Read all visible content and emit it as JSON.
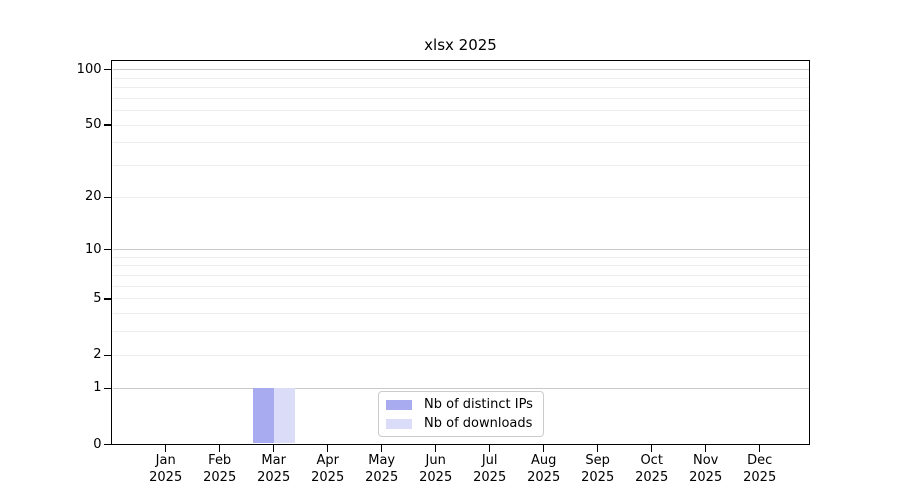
{
  "chart_data": {
    "type": "bar",
    "title": "xlsx 2025",
    "categories": [
      "Jan 2025",
      "Feb 2025",
      "Mar 2025",
      "Apr 2025",
      "May 2025",
      "Jun 2025",
      "Jul 2025",
      "Aug 2025",
      "Sep 2025",
      "Oct 2025",
      "Nov 2025",
      "Dec 2025"
    ],
    "series": [
      {
        "name": "Nb of distinct IPs",
        "color": "#a9abf1",
        "values": [
          0,
          0,
          1,
          0,
          0,
          0,
          0,
          0,
          0,
          0,
          0,
          0
        ]
      },
      {
        "name": "Nb of downloads",
        "color": "#dadcf8",
        "values": [
          0,
          0,
          1,
          0,
          0,
          0,
          0,
          0,
          0,
          0,
          0,
          0
        ]
      }
    ],
    "xlabel": "",
    "ylabel": "",
    "y_scale": "log1p",
    "ylim": [
      0,
      112
    ],
    "y_ticks": [
      0,
      1,
      2,
      5,
      10,
      20,
      50,
      100
    ],
    "grid_values": [
      1,
      2,
      3,
      4,
      5,
      6,
      7,
      8,
      9,
      10,
      20,
      30,
      40,
      50,
      60,
      70,
      80,
      90,
      100
    ],
    "major_grid_values": [
      1,
      10,
      100
    ],
    "grid": "horizontal-only",
    "legend_position": "bottom-center-inside"
  },
  "colors": {
    "background": "#ffffff",
    "spine": "#000000",
    "major_gridline": "#c9c9c9",
    "minor_gridline": "#ededed",
    "text": "#000000"
  }
}
